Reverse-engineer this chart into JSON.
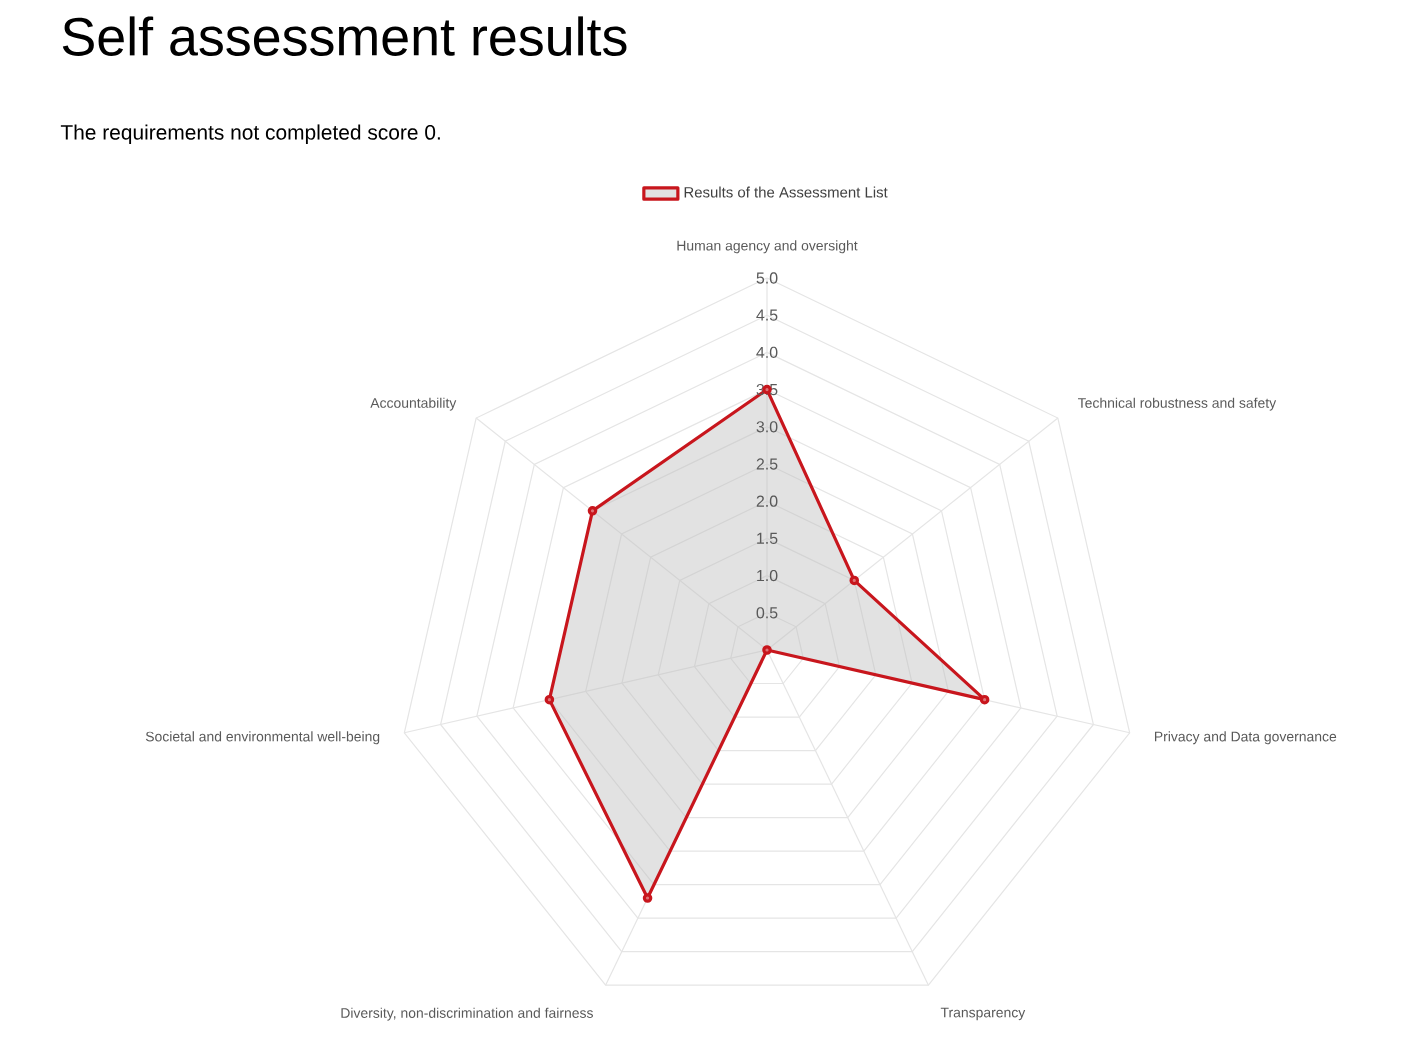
{
  "chart_data": {
    "type": "radar",
    "title": "Self assessment results",
    "subtitle": "The requirements not completed score 0.",
    "categories": [
      "Human agency and oversight",
      "Technical robustness and safety",
      "Privacy and Data governance",
      "Transparency",
      "Diversity, non-discrimination and fairness",
      "Societal and environmental well-being",
      "Accountability"
    ],
    "series": [
      {
        "name": "Results of the Assessment List",
        "color": "#c8161d",
        "values": [
          3.5,
          1.5,
          3.0,
          0,
          3.7,
          3.0,
          3.0
        ]
      }
    ],
    "ylim": [
      0,
      5
    ],
    "yticks": [
      0.5,
      {
        "value": 1,
        "label": "1.0"
      },
      1.5,
      {
        "value": 2,
        "label": "2.0"
      },
      2.5,
      {
        "value": 3,
        "label": "3.0"
      },
      3.5,
      {
        "value": 4,
        "label": "4.0"
      },
      4.5,
      {
        "value": 5,
        "label": "5.0"
      }
    ],
    "grid": true,
    "legend": "top",
    "marker": "circle"
  }
}
